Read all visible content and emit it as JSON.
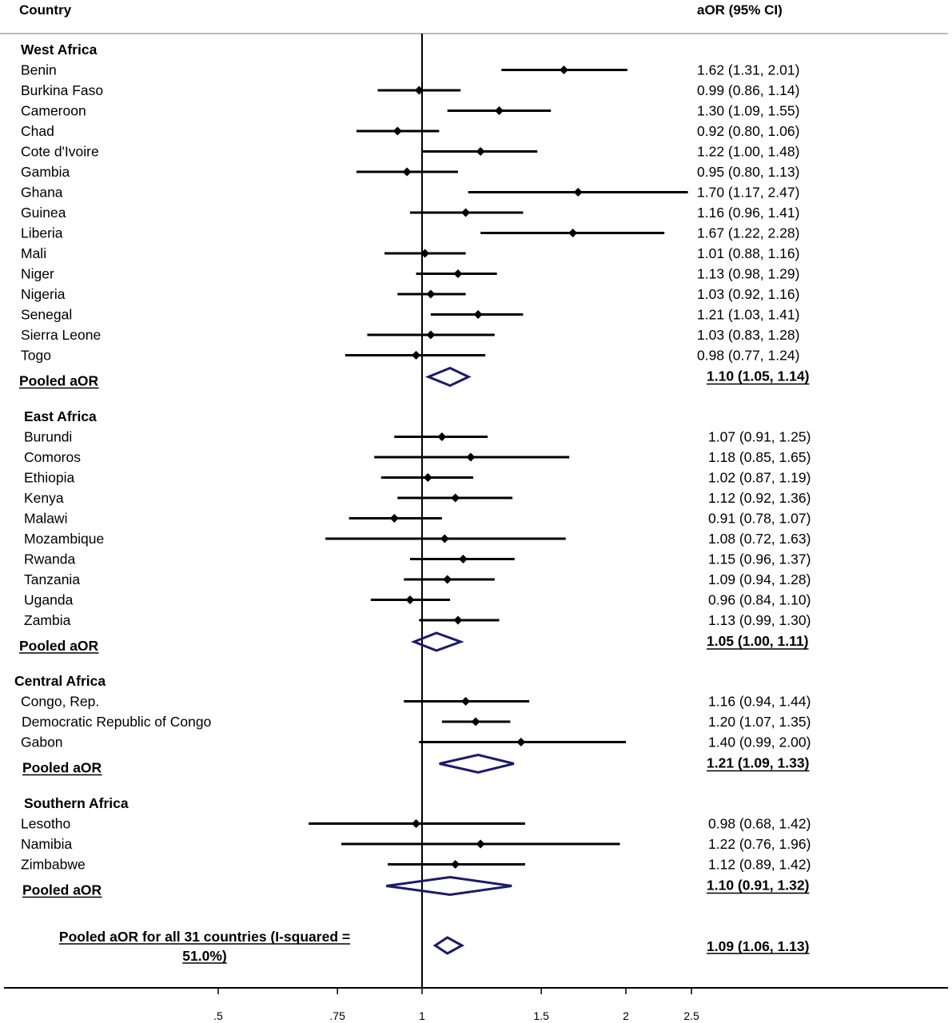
{
  "chart_data": {
    "type": "forest",
    "header": {
      "country": "Country",
      "estimate": "aOR (95% CI)"
    },
    "x_ticks": [
      {
        "value": 0.5,
        "label": ".5"
      },
      {
        "value": 0.75,
        "label": ".75"
      },
      {
        "value": 1,
        "label": "1"
      },
      {
        "value": 1.5,
        "label": "1.5"
      },
      {
        "value": 2,
        "label": "2"
      },
      {
        "value": 2.5,
        "label": "2.5"
      }
    ],
    "x_scale": "log",
    "reference_line": 1,
    "colors": {
      "study": "#000000",
      "pooled": "#1a1a6e"
    },
    "groups": [
      {
        "name": "West Africa",
        "studies": [
          {
            "label": "Benin",
            "or": 1.62,
            "lo": 1.31,
            "hi": 2.01,
            "text": "1.62 (1.31, 2.01)"
          },
          {
            "label": "Burkina Faso",
            "or": 0.99,
            "lo": 0.86,
            "hi": 1.14,
            "text": "0.99 (0.86, 1.14)"
          },
          {
            "label": "Cameroon",
            "or": 1.3,
            "lo": 1.09,
            "hi": 1.55,
            "text": "1.30 (1.09, 1.55)"
          },
          {
            "label": "Chad",
            "or": 0.92,
            "lo": 0.8,
            "hi": 1.06,
            "text": "0.92 (0.80, 1.06)"
          },
          {
            "label": "Cote d'Ivoire",
            "or": 1.22,
            "lo": 1.0,
            "hi": 1.48,
            "text": "1.22 (1.00, 1.48)"
          },
          {
            "label": "Gambia",
            "or": 0.95,
            "lo": 0.8,
            "hi": 1.13,
            "text": "0.95 (0.80, 1.13)"
          },
          {
            "label": "Ghana",
            "or": 1.7,
            "lo": 1.17,
            "hi": 2.47,
            "text": "1.70 (1.17, 2.47)"
          },
          {
            "label": "Guinea",
            "or": 1.16,
            "lo": 0.96,
            "hi": 1.41,
            "text": "1.16 (0.96, 1.41)"
          },
          {
            "label": "Liberia",
            "or": 1.67,
            "lo": 1.22,
            "hi": 2.28,
            "text": "1.67 (1.22, 2.28)"
          },
          {
            "label": "Mali",
            "or": 1.01,
            "lo": 0.88,
            "hi": 1.16,
            "text": "1.01 (0.88, 1.16)"
          },
          {
            "label": "Niger",
            "or": 1.13,
            "lo": 0.98,
            "hi": 1.29,
            "text": "1.13 (0.98, 1.29)"
          },
          {
            "label": "Nigeria",
            "or": 1.03,
            "lo": 0.92,
            "hi": 1.16,
            "text": "1.03 (0.92, 1.16)"
          },
          {
            "label": "Senegal",
            "or": 1.21,
            "lo": 1.03,
            "hi": 1.41,
            "text": "1.21 (1.03, 1.41)"
          },
          {
            "label": "Sierra Leone",
            "or": 1.03,
            "lo": 0.83,
            "hi": 1.28,
            "text": "1.03 (0.83, 1.28)"
          },
          {
            "label": "Togo",
            "or": 0.98,
            "lo": 0.77,
            "hi": 1.24,
            "text": "0.98 (0.77, 1.24)"
          }
        ],
        "pooled": {
          "label": "Pooled aOR",
          "or": 1.1,
          "lo": 1.05,
          "hi": 1.14,
          "text": "1.10 (1.05, 1.14)"
        }
      },
      {
        "name": "East Africa",
        "studies": [
          {
            "label": "Burundi",
            "or": 1.07,
            "lo": 0.91,
            "hi": 1.25,
            "text": "1.07 (0.91, 1.25)"
          },
          {
            "label": "Comoros",
            "or": 1.18,
            "lo": 0.85,
            "hi": 1.65,
            "text": "1.18 (0.85, 1.65)"
          },
          {
            "label": "Ethiopia",
            "or": 1.02,
            "lo": 0.87,
            "hi": 1.19,
            "text": "1.02 (0.87, 1.19)"
          },
          {
            "label": "Kenya",
            "or": 1.12,
            "lo": 0.92,
            "hi": 1.36,
            "text": "1.12 (0.92, 1.36)"
          },
          {
            "label": "Malawi",
            "or": 0.91,
            "lo": 0.78,
            "hi": 1.07,
            "text": "0.91 (0.78, 1.07)"
          },
          {
            "label": "Mozambique",
            "or": 1.08,
            "lo": 0.72,
            "hi": 1.63,
            "text": "1.08 (0.72, 1.63)"
          },
          {
            "label": "Rwanda",
            "or": 1.15,
            "lo": 0.96,
            "hi": 1.37,
            "text": "1.15 (0.96, 1.37)"
          },
          {
            "label": "Tanzania",
            "or": 1.09,
            "lo": 0.94,
            "hi": 1.28,
            "text": "1.09 (0.94, 1.28)"
          },
          {
            "label": "Uganda",
            "or": 0.96,
            "lo": 0.84,
            "hi": 1.1,
            "text": "0.96 (0.84, 1.10)"
          },
          {
            "label": "Zambia",
            "or": 1.13,
            "lo": 0.99,
            "hi": 1.3,
            "text": "1.13 (0.99, 1.30)"
          }
        ],
        "pooled": {
          "label": "Pooled aOR",
          "or": 1.05,
          "lo": 1.0,
          "hi": 1.11,
          "text": "1.05 (1.00, 1.11)"
        }
      },
      {
        "name": "Central Africa",
        "studies": [
          {
            "label": "Congo, Rep.",
            "or": 1.16,
            "lo": 0.94,
            "hi": 1.44,
            "text": "1.16 (0.94, 1.44)"
          },
          {
            "label": "Democratic Republic of Congo",
            "or": 1.2,
            "lo": 1.07,
            "hi": 1.35,
            "text": "1.20 (1.07, 1.35)"
          },
          {
            "label": "Gabon",
            "or": 1.4,
            "lo": 0.99,
            "hi": 2.0,
            "text": "1.40 (0.99, 2.00)"
          }
        ],
        "pooled": {
          "label": "Pooled aOR",
          "or": 1.21,
          "lo": 1.09,
          "hi": 1.33,
          "text": "1.21 (1.09, 1.33)"
        }
      },
      {
        "name": "Southern Africa",
        "studies": [
          {
            "label": "Lesotho",
            "or": 0.98,
            "lo": 0.68,
            "hi": 1.42,
            "text": "0.98 (0.68, 1.42)"
          },
          {
            "label": "Namibia",
            "or": 1.22,
            "lo": 0.76,
            "hi": 1.96,
            "text": "1.22 (0.76, 1.96)"
          },
          {
            "label": "Zimbabwe",
            "or": 1.12,
            "lo": 0.89,
            "hi": 1.42,
            "text": "1.12 (0.89, 1.42)"
          }
        ],
        "pooled": {
          "label": "Pooled aOR",
          "or": 1.1,
          "lo": 0.91,
          "hi": 1.32,
          "text": "1.10 (0.91, 1.32)"
        }
      }
    ],
    "overall": {
      "label_line1": "Pooled aOR for all 31 countries (I-squared =",
      "label_line2": "51.0%)",
      "or": 1.09,
      "lo": 1.06,
      "hi": 1.13,
      "text": "1.09 (1.06, 1.13)"
    }
  }
}
